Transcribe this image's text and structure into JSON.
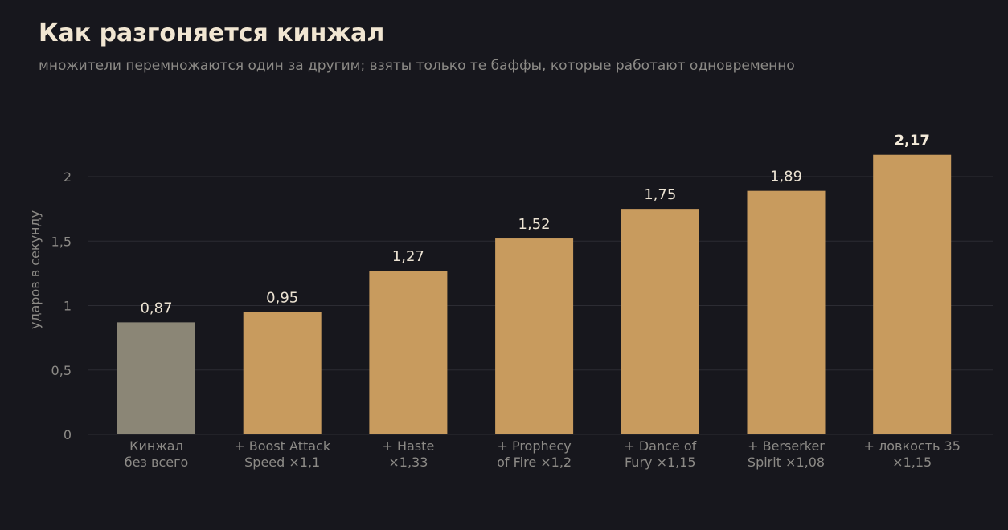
{
  "title": "Как разгоняется кинжал",
  "subtitle": "множители перемножаются один за другим; взяты только те баффы, которые работают одновременно",
  "colors": {
    "background": "#17171d",
    "bar_base": "#8b8676",
    "bar_accent": "#c89b5e",
    "grid": "#2c2c33"
  },
  "chart_data": {
    "type": "bar",
    "title": "",
    "xlabel": "",
    "ylabel": "ударов в секунду",
    "ylim": [
      0,
      2.2
    ],
    "yticks": [
      0,
      0.5,
      1,
      1.5,
      2
    ],
    "ytick_labels": [
      "0",
      "0,5",
      "1",
      "1,5",
      "2"
    ],
    "grid": true,
    "categories": [
      [
        "Кинжал",
        "без всего"
      ],
      [
        "+ Boost Attack",
        "Speed ×1,1"
      ],
      [
        "+ Haste",
        "×1,33"
      ],
      [
        "+ Prophecy",
        "of Fire ×1,2"
      ],
      [
        "+ Dance of",
        "Fury ×1,15"
      ],
      [
        "+ Berserker",
        "Spirit ×1,08"
      ],
      [
        "+ ловкость 35",
        "×1,15"
      ]
    ],
    "values": [
      0.87,
      0.95,
      1.27,
      1.52,
      1.75,
      1.89,
      2.17
    ],
    "value_labels": [
      "0,87",
      "0,95",
      "1,27",
      "1,52",
      "1,75",
      "1,89",
      "2,17"
    ],
    "highlight_last_label": true
  }
}
